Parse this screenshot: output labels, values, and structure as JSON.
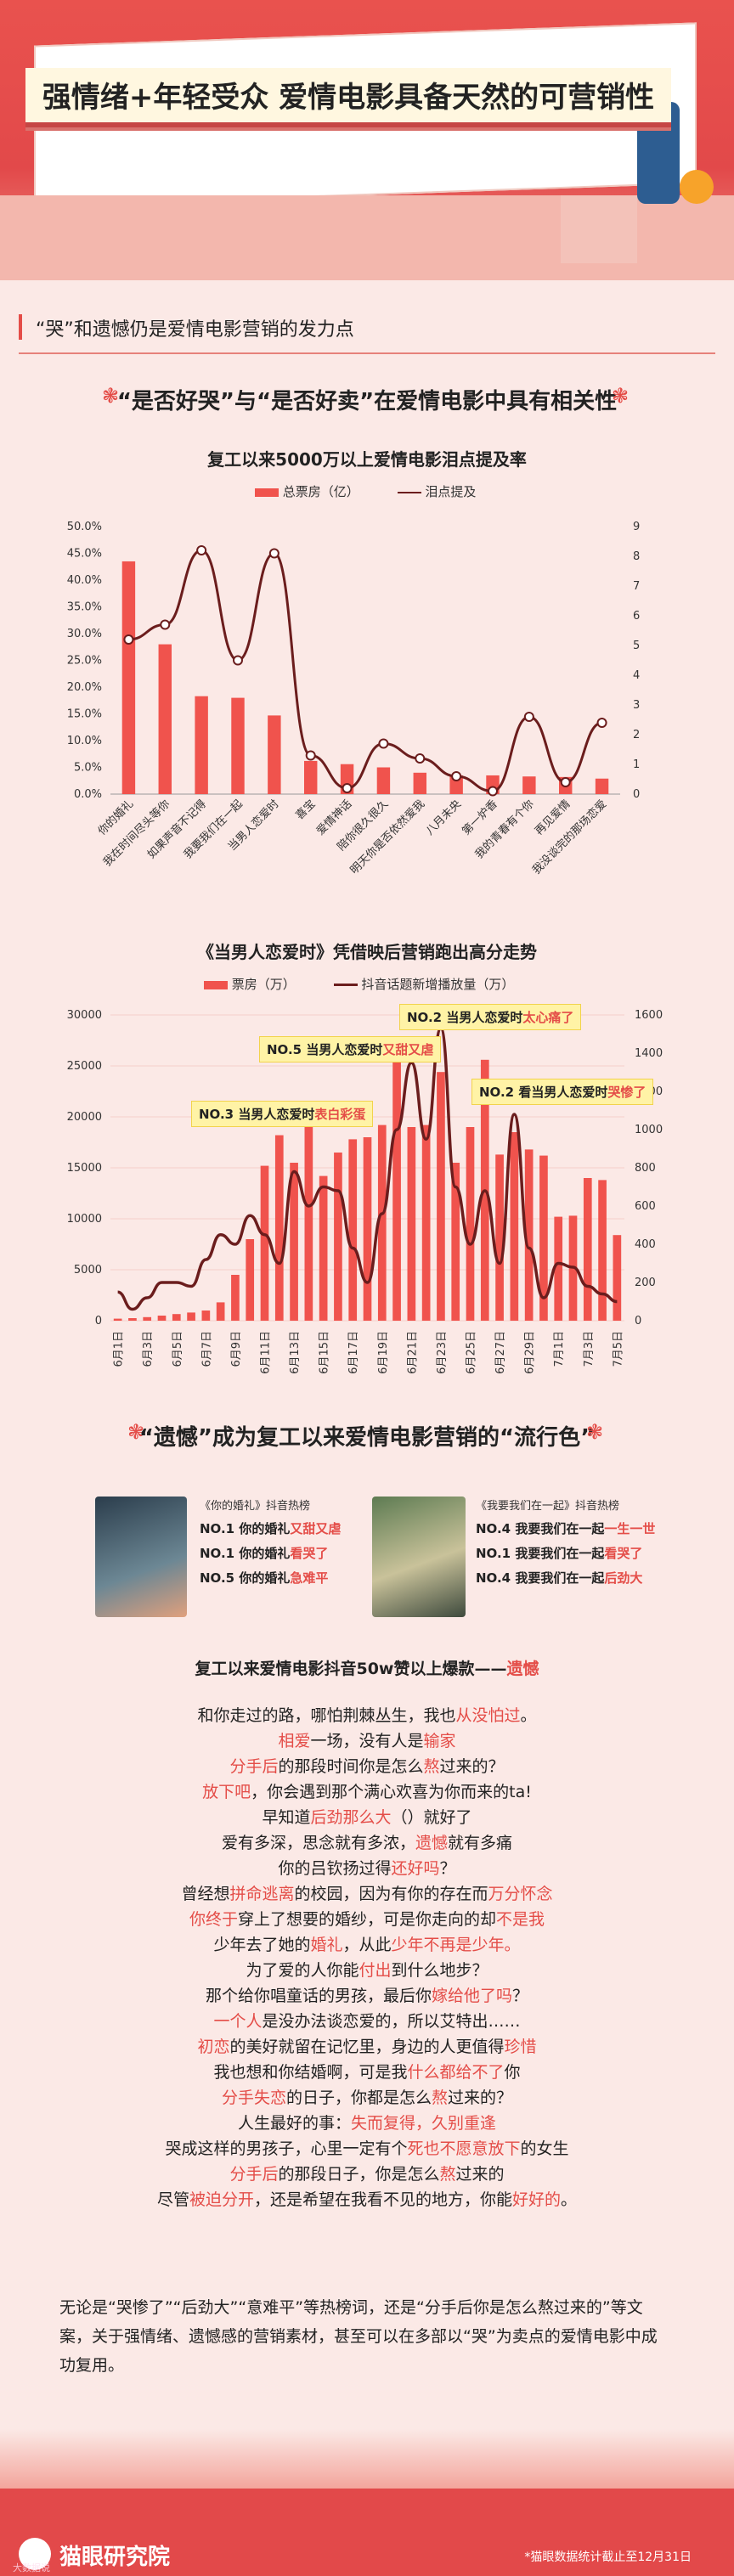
{
  "header": {
    "title": "强情绪+年轻受众  爱情电影具备天然的可营销性"
  },
  "section": {
    "title": "“哭”和遗憾仍是爱情电影营销的发力点"
  },
  "part1": {
    "title": "“是否好哭”与“是否好卖”在爱情电影中具有相关性"
  },
  "part2": {
    "title": "“遗憾”成为复工以来爱情电影营销的“流行色”"
  },
  "chart_data": [
    {
      "type": "bar",
      "title": "复工以来5000万以上爱情电影泪点提及率",
      "legend": [
        "总票房（亿）",
        "泪点提及"
      ],
      "categories": [
        "你的婚礼",
        "我在时间尽头等你",
        "如果声音不记得",
        "我要我们在一起",
        "当男人恋爱时",
        "喜宝",
        "爱情神话",
        "陪你很久很久",
        "明天你是否依然爱我",
        "八月未央",
        "第一炉香",
        "我的青春有个你",
        "再见爱情",
        "我没谈完的那场恋爱"
      ],
      "series": [
        {
          "name": "总票房（亿）",
          "values": [
            43.5,
            28,
            18.3,
            18,
            14.7,
            6.2,
            5.6,
            5,
            4,
            3.5,
            3.5,
            3.3,
            3.2,
            2.9
          ]
        },
        {
          "name": "泪点提及",
          "values": [
            5.2,
            5.7,
            8.2,
            4.5,
            8.1,
            1.3,
            0.2,
            1.7,
            1.2,
            0.6,
            0.1,
            2.6,
            0.4,
            2.4
          ]
        }
      ],
      "ylim_left": [
        0,
        50
      ],
      "ylim_right": [
        0,
        9
      ],
      "yticks_left": [
        "0.0%",
        "5.0%",
        "10.0%",
        "15.0%",
        "20.0%",
        "25.0%",
        "30.0%",
        "35.0%",
        "40.0%",
        "45.0%",
        "50.0%"
      ],
      "yticks_right": [
        "0",
        "1",
        "2",
        "3",
        "4",
        "5",
        "6",
        "7",
        "8",
        "9"
      ]
    },
    {
      "type": "bar",
      "title": "《当男人恋爱时》凭借映后营销跑出高分走势",
      "legend": [
        "票房（万）",
        "抖音话题新增播放量（万）"
      ],
      "x": [
        "6月1日",
        "6月2日",
        "6月3日",
        "6月4日",
        "6月5日",
        "6月6日",
        "6月7日",
        "6月8日",
        "6月9日",
        "6月10日",
        "6月11日",
        "6月12日",
        "6月13日",
        "6月14日",
        "6月15日",
        "6月16日",
        "6月17日",
        "6月18日",
        "6月19日",
        "6月20日",
        "6月21日",
        "6月22日",
        "6月23日",
        "6月24日",
        "6月25日",
        "6月26日",
        "6月27日",
        "6月28日",
        "6月29日",
        "6月30日",
        "7月1日",
        "7月2日",
        "7月3日",
        "7月4日",
        "7月5日"
      ],
      "xticks": [
        "6月1日",
        "6月3日",
        "6月5日",
        "6月7日",
        "6月9日",
        "6月11日",
        "6月13日",
        "6月15日",
        "6月17日",
        "6月19日",
        "6月21日",
        "6月23日",
        "6月25日",
        "6月27日",
        "6月29日",
        "7月1日",
        "7月3日",
        "7月5日"
      ],
      "series": [
        {
          "name": "票房（万）",
          "values": [
            200,
            250,
            350,
            500,
            650,
            800,
            1000,
            1800,
            4500,
            8000,
            15200,
            18200,
            15500,
            19000,
            14200,
            16500,
            17800,
            18000,
            19200,
            27500,
            19000,
            19200,
            24400,
            15500,
            19000,
            25600,
            16300,
            18500,
            16800,
            16200,
            10200,
            10300,
            14000,
            13800,
            8400
          ]
        },
        {
          "name": "抖音话题新增播放量（万）",
          "values": [
            150,
            60,
            120,
            200,
            200,
            180,
            320,
            450,
            400,
            550,
            450,
            300,
            780,
            600,
            700,
            680,
            380,
            200,
            560,
            1000,
            1350,
            950,
            1530,
            700,
            400,
            680,
            300,
            1080,
            380,
            120,
            300,
            280,
            180,
            140,
            100
          ]
        }
      ],
      "ylim_left": [
        0,
        30000
      ],
      "ylim_right": [
        0,
        1600
      ],
      "yticks_left": [
        "0",
        "5000",
        "10000",
        "15000",
        "20000",
        "25000",
        "30000"
      ],
      "yticks_right": [
        "0",
        "200",
        "400",
        "600",
        "800",
        "1000",
        "1200",
        "1400",
        "1600"
      ],
      "annotations": [
        {
          "prefix": "NO.2 当男人恋爱时",
          "hl": "太心痛了"
        },
        {
          "prefix": "NO.5 当男人恋爱时",
          "hl": "又甜又虐"
        },
        {
          "prefix": "NO.2 看当男人恋爱时",
          "hl": "哭惨了"
        },
        {
          "prefix": "NO.3 当男人恋爱时",
          "hl": "表白彩蛋"
        }
      ]
    }
  ],
  "hot": {
    "left": {
      "title": "《你的婚礼》抖音热榜",
      "lines": [
        {
          "p": "NO.1 你的婚礼",
          "h": "又甜又虐"
        },
        {
          "p": "NO.1 你的婚礼",
          "h": "看哭了"
        },
        {
          "p": "NO.5 你的婚礼",
          "h": "急难平"
        }
      ]
    },
    "right": {
      "title": "《我要我们在一起》抖音热榜",
      "lines": [
        {
          "p": "NO.4 我要我们在一起",
          "h": "一生一世"
        },
        {
          "p": "NO.1 我要我们在一起",
          "h": "看哭了"
        },
        {
          "p": "NO.4 我要我们在一起",
          "h": "后劲大"
        }
      ]
    }
  },
  "lyrics": {
    "title_prefix": "复工以来爱情电影抖音50w赞以上爆款——",
    "title_hl": "遗憾",
    "lines": [
      [
        [
          "和你走过的路，哪怕荆棘丛生，我也",
          0
        ],
        [
          "从没怕过",
          1
        ],
        [
          "。",
          0
        ]
      ],
      [
        [
          "相爱",
          1
        ],
        [
          "一场，没有人是",
          0
        ],
        [
          "输家",
          1
        ]
      ],
      [
        [
          "分手后",
          1
        ],
        [
          "的那段时间你是怎么",
          0
        ],
        [
          "熬",
          1
        ],
        [
          "过来的？",
          0
        ]
      ],
      [
        [
          "放下吧",
          1
        ],
        [
          "，你会遇到那个满心欢喜为你而来的ta!",
          0
        ]
      ],
      [
        [
          "早知道",
          0
        ],
        [
          "后劲那么大",
          1
        ],
        [
          "（）就好了",
          0
        ]
      ],
      [
        [
          "爱有多深，思念就有多浓，",
          0
        ],
        [
          "遗憾",
          1
        ],
        [
          "就有多痛",
          0
        ]
      ],
      [
        [
          "你的吕钦扬过得",
          0
        ],
        [
          "还好吗",
          1
        ],
        [
          "？",
          0
        ]
      ],
      [
        [
          "曾经想",
          0
        ],
        [
          "拼命逃离",
          1
        ],
        [
          "的校园，因为有你的存在而",
          0
        ],
        [
          "万分怀念",
          1
        ]
      ],
      [
        [
          "你终于",
          1
        ],
        [
          "穿上了想要的婚纱，可是你走向的却",
          0
        ],
        [
          "不是我",
          1
        ]
      ],
      [
        [
          "少年去了她的",
          0
        ],
        [
          "婚礼",
          1
        ],
        [
          "，从此",
          0
        ],
        [
          "少年不再是少年。",
          1
        ]
      ],
      [
        [
          "为了爱的人你能",
          0
        ],
        [
          "付出",
          1
        ],
        [
          "到什么地步？",
          0
        ]
      ],
      [
        [
          "那个给你唱童话的男孩，最后你",
          0
        ],
        [
          "嫁给他了吗",
          1
        ],
        [
          "？",
          0
        ]
      ],
      [
        [
          "一个人",
          1
        ],
        [
          "是没办法谈恋爱的，所以艾特出……",
          0
        ]
      ],
      [
        [
          "初恋",
          1
        ],
        [
          "的美好就留在记忆里，身边的人更值得",
          0
        ],
        [
          "珍惜",
          1
        ]
      ],
      [
        [
          "我也想和你结婚啊，可是我",
          0
        ],
        [
          "什么都给不了",
          1
        ],
        [
          "你",
          0
        ]
      ],
      [
        [
          "分手失恋",
          1
        ],
        [
          "的日子，你都是怎么",
          0
        ],
        [
          "熬",
          1
        ],
        [
          "过来的？",
          0
        ]
      ],
      [
        [
          "人生最好的事：",
          0
        ],
        [
          "失而复得，久别重逢",
          1
        ]
      ],
      [
        [
          "哭成这样的男孩子，心里一定有个",
          0
        ],
        [
          "死也不愿意放下",
          1
        ],
        [
          "的女生",
          0
        ]
      ],
      [
        [
          "分手后",
          1
        ],
        [
          "的那段日子，你是怎么",
          0
        ],
        [
          "熬",
          1
        ],
        [
          "过来的",
          0
        ]
      ],
      [
        [
          "尽管",
          0
        ],
        [
          "被迫分开",
          1
        ],
        [
          "，还是希望在我看不见的地方，你能",
          0
        ],
        [
          "好好的",
          1
        ],
        [
          "。",
          0
        ]
      ]
    ]
  },
  "summary": {
    "text": "无论是“哭惨了”“后劲大”“意难平”等热榜词，还是“分手后你是怎么熬过来的”等文案，关于强情绪、遗憾感的营销素材，甚至可以在多部以“哭”为卖点的爱情电影中成功复用。"
  },
  "footer": {
    "brand": "猫眼研究院",
    "watermark": "大数据说",
    "source": "*猫眼数据统计截止至12月31日"
  },
  "colors": {
    "accent": "#e44d48",
    "bar": "#f0534d",
    "line": "#6b1d1d",
    "bg": "#fbe9e6"
  }
}
